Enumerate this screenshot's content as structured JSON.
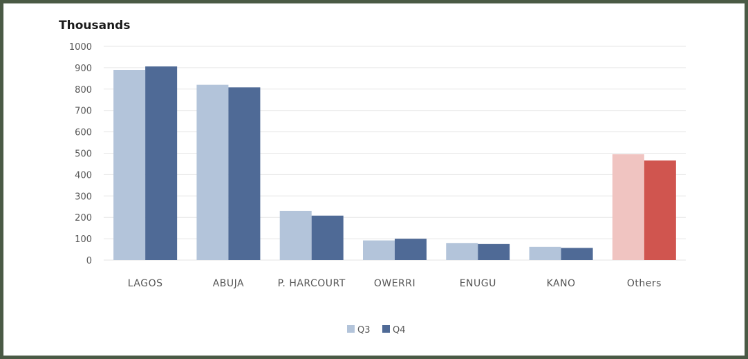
{
  "chart_data": {
    "type": "bar",
    "title": "Thousands",
    "categories": [
      "LAGOS",
      "ABUJA",
      "P. HARCOURT",
      "OWERRI",
      "ENUGU",
      "KANO",
      "Others"
    ],
    "series": [
      {
        "name": "Q3",
        "values": [
          890,
          820,
          230,
          92,
          80,
          62,
          495
        ]
      },
      {
        "name": "Q4",
        "values": [
          906,
          808,
          208,
          100,
          75,
          57,
          466
        ]
      }
    ],
    "ylim": [
      0,
      1000
    ],
    "yticks": [
      0,
      100,
      200,
      300,
      400,
      500,
      600,
      700,
      800,
      900,
      1000
    ],
    "grid": true,
    "legend": "bottom-center"
  },
  "colors": {
    "series": [
      "#b3c4da",
      "#4f6a96"
    ],
    "highlight_category": "Others",
    "highlight_series": [
      "#f0c4c1",
      "#d0554f"
    ],
    "grid": "#e6e6e6",
    "frame": "#4a5a45"
  }
}
